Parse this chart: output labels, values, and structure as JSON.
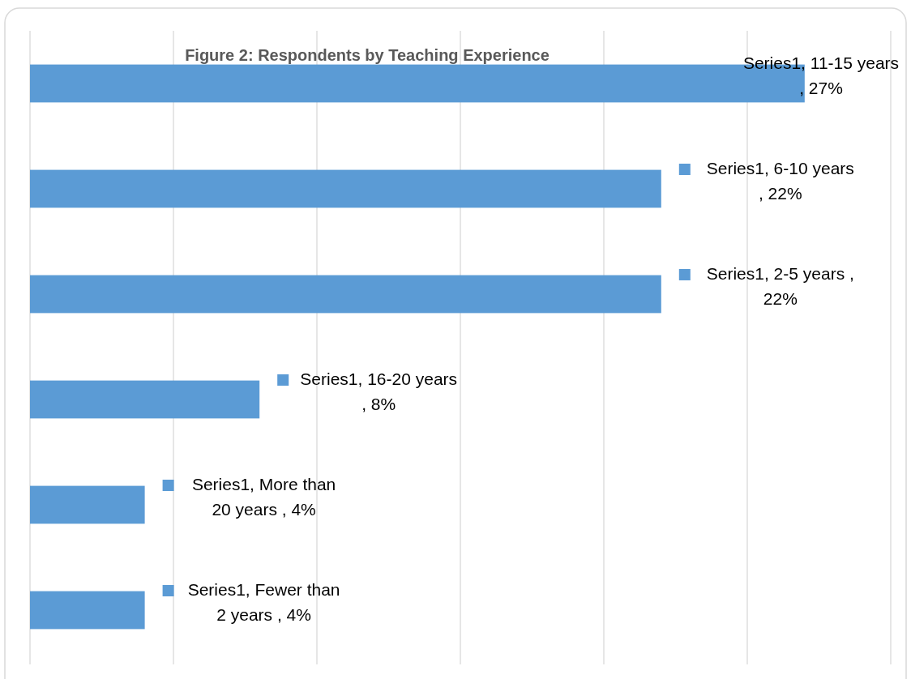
{
  "chart_data": {
    "type": "bar",
    "orientation": "horizontal",
    "title": "Figure 2: Respondents by Teaching Experience",
    "categories": [
      null,
      null,
      null,
      null,
      null,
      null
    ],
    "values": [
      27,
      22,
      22,
      8,
      4,
      4
    ],
    "value_labels": [
      "Series1, 11-15 years , 27%",
      "Series1, 6-10 years , 22%",
      "Series1, 2-5 years , 22%",
      "Series1, 16-20 years , 8%",
      "Series1, More than 20 years , 4%",
      "Series1, Fewer than 2 years , 4%"
    ],
    "color": "#5b9bd5",
    "xlim": [
      0,
      30
    ],
    "xticks": [
      {
        "value": 0,
        "label": null
      },
      {
        "value": 5,
        "label": null
      },
      {
        "value": 10,
        "label": null
      },
      {
        "value": 15,
        "label": null
      },
      {
        "value": 20,
        "label": null
      },
      {
        "value": 25,
        "label": null
      },
      {
        "value": 30,
        "label": null
      }
    ],
    "grid": "x"
  }
}
